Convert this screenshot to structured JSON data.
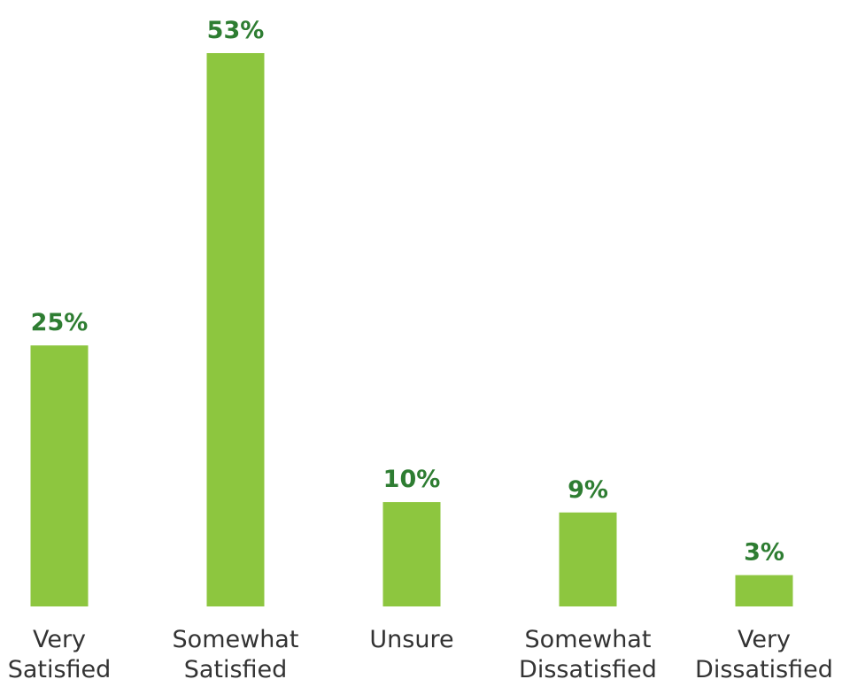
{
  "colors": {
    "bar": "#8dc63f",
    "value_label": "#2e7d32",
    "category_label": "#333333"
  },
  "chart_data": {
    "type": "bar",
    "title": "",
    "xlabel": "",
    "ylabel": "",
    "grid": false,
    "legend": "none",
    "ylim": [
      0,
      53
    ],
    "categories": [
      [
        "Very",
        "Satisfied"
      ],
      [
        "Somewhat",
        "Satisfied"
      ],
      [
        "Unsure"
      ],
      [
        "Somewhat",
        "Dissatisfied"
      ],
      [
        "Very",
        "Dissatisfied"
      ]
    ],
    "values": [
      25,
      53,
      10,
      9,
      3
    ],
    "value_labels": [
      "25%",
      "53%",
      "10%",
      "9%",
      "3%"
    ]
  }
}
